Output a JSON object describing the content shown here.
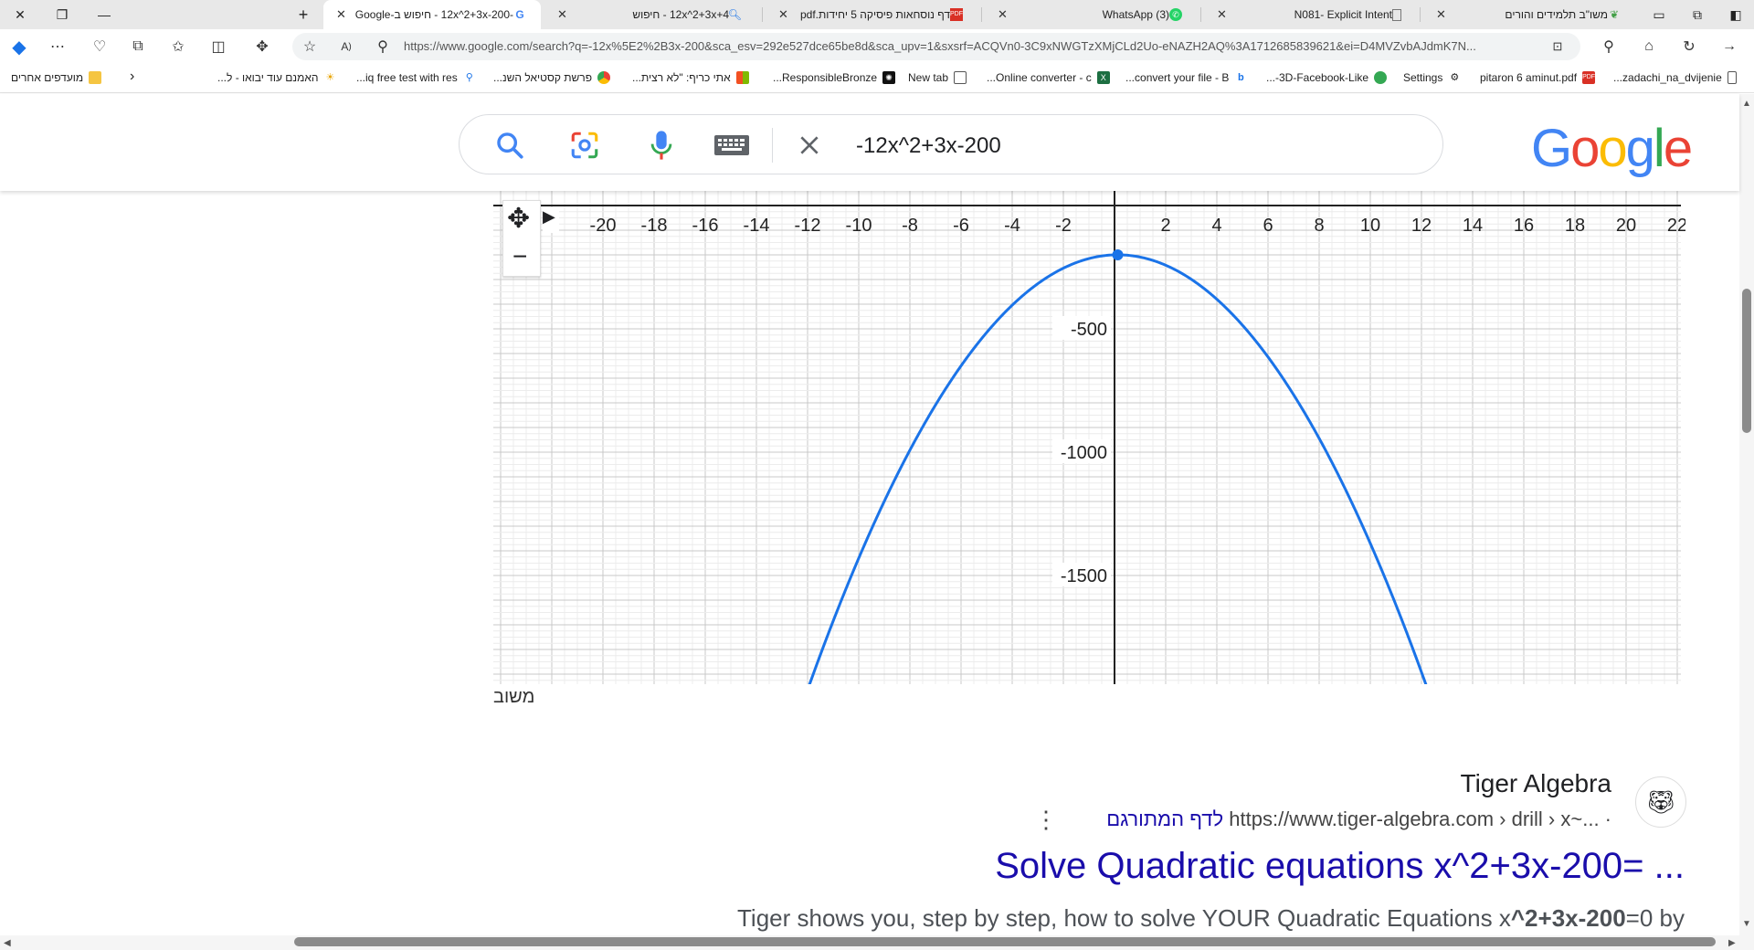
{
  "tabs": [
    {
      "label": "משו\"ב תלמידים והורים",
      "icon": "leaf-icon",
      "active": false
    },
    {
      "label": "N081- Explicit Intent",
      "icon": "document-icon",
      "active": false
    },
    {
      "label": "(3) WhatsApp",
      "icon": "whatsapp-icon",
      "active": false
    },
    {
      "label": "דף נוסחאות פיסיקה 5 יחידות.pdf",
      "icon": "pdf-icon",
      "active": false
    },
    {
      "label": "12x^2+3x+4 - חיפוש",
      "icon": "search-icon",
      "active": false
    },
    {
      "label": "-12x^2+3x-200 - חיפוש ב-Google",
      "icon": "google-icon",
      "active": true
    }
  ],
  "address": {
    "url": "https://www.google.com/search?q=-12x%5E2%2B3x-200&sca_esv=292e527dce65be8d&sca_upv=1&sxsrf=ACQVn0-3C9xNWGTzXMjCLd2Uo-eNAZH2AQ%3A1712685839621&ei=D4MVZvbAJdmK7N..."
  },
  "bookmarks": [
    {
      "label": "zadachi_na_dvijenie...",
      "icon": "document-icon"
    },
    {
      "label": "pitaron 6 aminut.pdf",
      "icon": "pdf-icon"
    },
    {
      "label": "Settings",
      "icon": "gear-icon"
    },
    {
      "label": "3D-Facebook-Like-...",
      "icon": "green-circle-icon"
    },
    {
      "label": "convert your file - B...",
      "icon": "bing-icon"
    },
    {
      "label": "Online converter - c...",
      "icon": "excel-icon"
    },
    {
      "label": "New tab",
      "icon": "newtab-icon"
    },
    {
      "label": "ResponsibleBronze...",
      "icon": "openai-icon"
    },
    {
      "label": "אתי כריף: \"לא רצית...",
      "icon": "microsoft-icon"
    },
    {
      "label": "פרשת קסטיאל השנ...",
      "icon": "chrome-icon"
    },
    {
      "label": "iq free test with res...",
      "icon": "search-icon"
    },
    {
      "label": "האמנם עוד יבואו - ל...",
      "icon": "sun-icon"
    }
  ],
  "bookmarks_other": "מועדפים אחרים",
  "search": {
    "query": "-12x^2+3x-200"
  },
  "google_logo": [
    "G",
    "o",
    "o",
    "g",
    "l",
    "e"
  ],
  "chart_data": {
    "type": "line",
    "function": "-12x^2+3x-200",
    "xlim": [
      -24,
      22.5
    ],
    "ylim": [
      -1950,
      0
    ],
    "x_ticks": [
      -20,
      -18,
      -16,
      -14,
      -12,
      -10,
      -8,
      -6,
      -4,
      -2,
      2,
      4,
      6,
      8,
      10,
      12,
      14,
      16,
      18,
      20,
      22
    ],
    "y_ticks": [
      -500,
      -1000,
      -1500
    ],
    "vertex": {
      "x": 0.125,
      "y": -199.8125
    },
    "grid": true,
    "line_color": "#1a73e8"
  },
  "answer_label": "משוב",
  "result": {
    "site_name": "Tiger Algebra",
    "url": "https://www.tiger-algebra.com › drill › x~... ·",
    "translate": "לדף המתורגם",
    "title": "Solve Quadratic equations x^2+3x-200= ...",
    "snippet_pre": "Tiger shows you, step by step, how to solve YOUR Quadratic Equations x",
    "snippet_bold": "^2+3x-200",
    "snippet_post": "=0 by"
  }
}
